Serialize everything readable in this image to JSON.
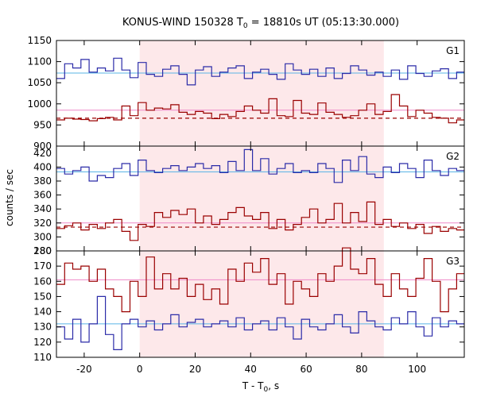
{
  "chart_data": {
    "type": "line",
    "title_prefix": "KONUS-WIND 150328 T",
    "title_sub": "0",
    "title_suffix": " = 18810s UT (05:13:30.000)",
    "xlabel_prefix": "T - T",
    "xlabel_sub": "0",
    "xlabel_suffix": ", s",
    "ylabel": "counts / sec",
    "xlim": [
      -30,
      117
    ],
    "xticks": [
      "-20",
      "0",
      "20",
      "40",
      "60",
      "80",
      "100"
    ],
    "shaded_interval": [
      0,
      88
    ],
    "step": 2.944,
    "x_start": -30,
    "colors": {
      "blue": "#2b2ba8",
      "red": "#9a0000",
      "bg_blue": "#5ab4e6",
      "bg_red": "#ee88c8",
      "fit_red": "#9a0000",
      "shade": "#fde8ea"
    },
    "panels": [
      {
        "label": "G1",
        "ylim": [
          900,
          1150
        ],
        "yticks": [
          "900",
          "950",
          "1000",
          "1050",
          "1100",
          "1150"
        ],
        "series": [
          {
            "color": "blue",
            "bg": 1073,
            "values": [
              1060,
              1095,
              1085,
              1105,
              1075,
              1085,
              1078,
              1108,
              1080,
              1062,
              1098,
              1070,
              1065,
              1082,
              1090,
              1070,
              1045,
              1080,
              1088,
              1065,
              1075,
              1085,
              1090,
              1060,
              1075,
              1082,
              1070,
              1058,
              1095,
              1080,
              1070,
              1082,
              1065,
              1085,
              1060,
              1072,
              1090,
              1080,
              1068,
              1075,
              1065,
              1080,
              1058,
              1090,
              1072,
              1065,
              1078,
              1083,
              1060,
              1075
            ]
          },
          {
            "color": "red",
            "bg": 985,
            "fit": 966,
            "values": [
              962,
              966,
              964,
              963,
              960,
              965,
              968,
              962,
              995,
              972,
              1003,
              985,
              990,
              988,
              998,
              980,
              975,
              982,
              978,
              965,
              975,
              970,
              982,
              995,
              985,
              978,
              1012,
              972,
              970,
              1008,
              978,
              975,
              1002,
              980,
              975,
              968,
              972,
              985,
              1000,
              975,
              982,
              1022,
              995,
              970,
              985,
              978,
              968,
              966,
              955,
              962
            ]
          }
        ]
      },
      {
        "label": "G2",
        "ylim": [
          280,
          430
        ],
        "yticks": [
          "280",
          "300",
          "320",
          "340",
          "360",
          "380",
          "400",
          "420"
        ],
        "series": [
          {
            "color": "blue",
            "bg": 393,
            "values": [
              398,
              390,
              395,
              400,
              380,
              388,
              385,
              398,
              405,
              388,
              410,
              395,
              392,
              398,
              402,
              395,
              400,
              405,
              398,
              402,
              392,
              408,
              395,
              425,
              395,
              412,
              390,
              398,
              405,
              392,
              395,
              392,
              405,
              398,
              378,
              410,
              395,
              415,
              390,
              385,
              400,
              392,
              405,
              398,
              385,
              410,
              395,
              388,
              398,
              395
            ]
          },
          {
            "color": "red",
            "bg": 320,
            "fit": 314,
            "values": [
              312,
              316,
              320,
              310,
              318,
              312,
              320,
              325,
              308,
              295,
              318,
              315,
              335,
              328,
              338,
              332,
              340,
              320,
              330,
              318,
              325,
              335,
              342,
              330,
              325,
              335,
              312,
              325,
              310,
              318,
              328,
              340,
              320,
              325,
              348,
              320,
              335,
              322,
              350,
              318,
              325,
              315,
              320,
              312,
              318,
              305,
              315,
              308,
              312,
              310
            ]
          }
        ]
      },
      {
        "label": "G3",
        "ylim": [
          110,
          180
        ],
        "yticks": [
          "110",
          "120",
          "130",
          "140",
          "150",
          "160",
          "170",
          "180"
        ],
        "series": [
          {
            "color": "blue",
            "bg": 132,
            "values": [
              130,
              122,
              135,
              120,
              132,
              150,
              125,
              115,
              132,
              135,
              130,
              134,
              128,
              132,
              138,
              130,
              133,
              135,
              130,
              132,
              134,
              130,
              136,
              128,
              132,
              134,
              128,
              136,
              130,
              122,
              135,
              130,
              128,
              132,
              138,
              130,
              126,
              140,
              134,
              130,
              128,
              136,
              132,
              140,
              130,
              124,
              136,
              130,
              134,
              132
            ]
          },
          {
            "color": "red",
            "bg": 161,
            "fit": null,
            "values": [
              158,
              172,
              168,
              170,
              160,
              168,
              155,
              150,
              140,
              160,
              150,
              176,
              155,
              165,
              155,
              162,
              150,
              158,
              148,
              155,
              145,
              168,
              160,
              172,
              166,
              175,
              158,
              165,
              145,
              160,
              155,
              150,
              165,
              160,
              170,
              182,
              168,
              165,
              175,
              158,
              150,
              165,
              155,
              150,
              162,
              175,
              160,
              140,
              155,
              165
            ]
          }
        ]
      }
    ]
  }
}
